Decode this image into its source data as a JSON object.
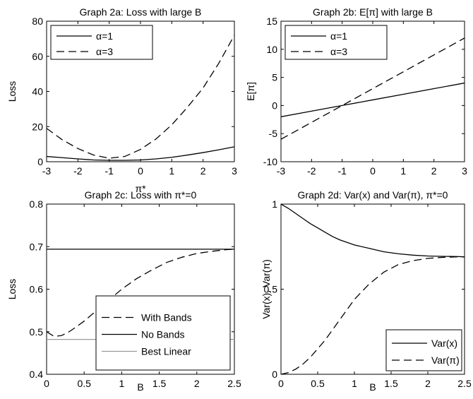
{
  "chart_data": [
    {
      "id": "2a",
      "type": "line",
      "title": "Graph 2a: Loss with large B",
      "xlabel": "π*",
      "ylabel": "Loss",
      "xlim": [
        -3,
        3
      ],
      "ylim": [
        0,
        80
      ],
      "xticks": [
        -3,
        -2,
        -1,
        0,
        1,
        2,
        3
      ],
      "yticks": [
        0,
        20,
        40,
        60,
        80
      ],
      "grid": false,
      "legend_position": "top-left",
      "x": [
        -3,
        -2.5,
        -2,
        -1.5,
        -1,
        -0.5,
        0,
        0.5,
        1,
        1.5,
        2,
        2.5,
        3
      ],
      "series": [
        {
          "name": "α=1",
          "style": "solid",
          "color": "#000000",
          "values": [
            3.0,
            2.3,
            1.6,
            1.0,
            0.8,
            0.8,
            1.0,
            1.6,
            2.5,
            3.8,
            5.2,
            6.8,
            8.5
          ]
        },
        {
          "name": "α=3",
          "style": "dashed",
          "color": "#000000",
          "values": [
            19.0,
            12.5,
            7.5,
            3.8,
            2.0,
            3.0,
            7.0,
            13.0,
            21.0,
            31.0,
            42.0,
            56.0,
            72.0
          ]
        }
      ]
    },
    {
      "id": "2b",
      "type": "line",
      "title": "Graph 2b: E[π] with large B",
      "xlabel": "",
      "ylabel": "E[π]",
      "xlim": [
        -3,
        3
      ],
      "ylim": [
        -10,
        15
      ],
      "xticks": [
        -3,
        -2,
        -1,
        0,
        1,
        2,
        3
      ],
      "yticks": [
        -10,
        -5,
        0,
        5,
        10,
        15
      ],
      "grid": false,
      "legend_position": "top-left",
      "x": [
        -3,
        -2,
        -1,
        0,
        1,
        2,
        3
      ],
      "series": [
        {
          "name": "α=1",
          "style": "solid",
          "color": "#000000",
          "values": [
            -2.0,
            -1.0,
            0.0,
            1.0,
            2.0,
            3.0,
            4.0
          ]
        },
        {
          "name": "α=3",
          "style": "dashed",
          "color": "#000000",
          "values": [
            -6.0,
            -3.0,
            0.0,
            3.0,
            6.0,
            9.0,
            12.0
          ]
        }
      ]
    },
    {
      "id": "2c",
      "type": "line",
      "title": "Graph 2c: Loss with π*=0",
      "xlabel": "B",
      "ylabel": "Loss",
      "xlim": [
        0,
        2.5
      ],
      "ylim": [
        0.4,
        0.8
      ],
      "xticks": [
        0,
        0.5,
        1,
        1.5,
        2,
        2.5
      ],
      "yticks": [
        0.4,
        0.5,
        0.6,
        0.7,
        0.8
      ],
      "grid": false,
      "legend_position": "bottom-right",
      "x": [
        0,
        0.1,
        0.2,
        0.3,
        0.4,
        0.5,
        0.6,
        0.7,
        0.8,
        0.9,
        1.0,
        1.2,
        1.4,
        1.6,
        1.8,
        2.0,
        2.2,
        2.4,
        2.5
      ],
      "series": [
        {
          "name": "With Bands",
          "style": "dashed",
          "color": "#000000",
          "values": [
            0.5,
            0.489,
            0.491,
            0.5,
            0.512,
            0.525,
            0.54,
            0.555,
            0.57,
            0.585,
            0.6,
            0.625,
            0.645,
            0.663,
            0.675,
            0.684,
            0.689,
            0.693,
            0.694
          ]
        },
        {
          "name": "No Bands",
          "style": "solid",
          "color": "#000000",
          "values": [
            0.694,
            0.694,
            0.694,
            0.694,
            0.694,
            0.694,
            0.694,
            0.694,
            0.694,
            0.694,
            0.694,
            0.694,
            0.694,
            0.694,
            0.694,
            0.694,
            0.694,
            0.694,
            0.694
          ]
        },
        {
          "name": "Best Linear",
          "style": "solid",
          "color": "#999999",
          "values": [
            0.482,
            0.482,
            0.482,
            0.482,
            0.482,
            0.482,
            0.482,
            0.482,
            0.482,
            0.482,
            0.482,
            0.482,
            0.482,
            0.482,
            0.482,
            0.482,
            0.482,
            0.482,
            0.482
          ]
        }
      ]
    },
    {
      "id": "2d",
      "type": "line",
      "title": "Graph 2d: Var(x) and Var(π), π*=0",
      "xlabel": "B",
      "ylabel": "Var(x), Var(π)",
      "xlim": [
        0,
        2.5
      ],
      "ylim": [
        0,
        1
      ],
      "xticks": [
        0,
        0.5,
        1,
        1.5,
        2,
        2.5
      ],
      "yticks": [
        0,
        0.5,
        1
      ],
      "grid": false,
      "legend_position": "bottom-right",
      "x": [
        0,
        0.1,
        0.2,
        0.3,
        0.4,
        0.5,
        0.6,
        0.7,
        0.8,
        0.9,
        1.0,
        1.2,
        1.4,
        1.6,
        1.8,
        2.0,
        2.2,
        2.4,
        2.5
      ],
      "series": [
        {
          "name": "Var(x)",
          "style": "solid",
          "color": "#000000",
          "values": [
            1.0,
            0.975,
            0.945,
            0.915,
            0.885,
            0.86,
            0.835,
            0.81,
            0.79,
            0.775,
            0.76,
            0.74,
            0.72,
            0.708,
            0.7,
            0.695,
            0.693,
            0.692,
            0.69
          ]
        },
        {
          "name": "Var(π)",
          "style": "dashed",
          "color": "#000000",
          "values": [
            0.0,
            0.01,
            0.03,
            0.06,
            0.1,
            0.15,
            0.2,
            0.26,
            0.32,
            0.38,
            0.44,
            0.53,
            0.6,
            0.645,
            0.668,
            0.681,
            0.687,
            0.69,
            0.69
          ]
        }
      ]
    }
  ]
}
